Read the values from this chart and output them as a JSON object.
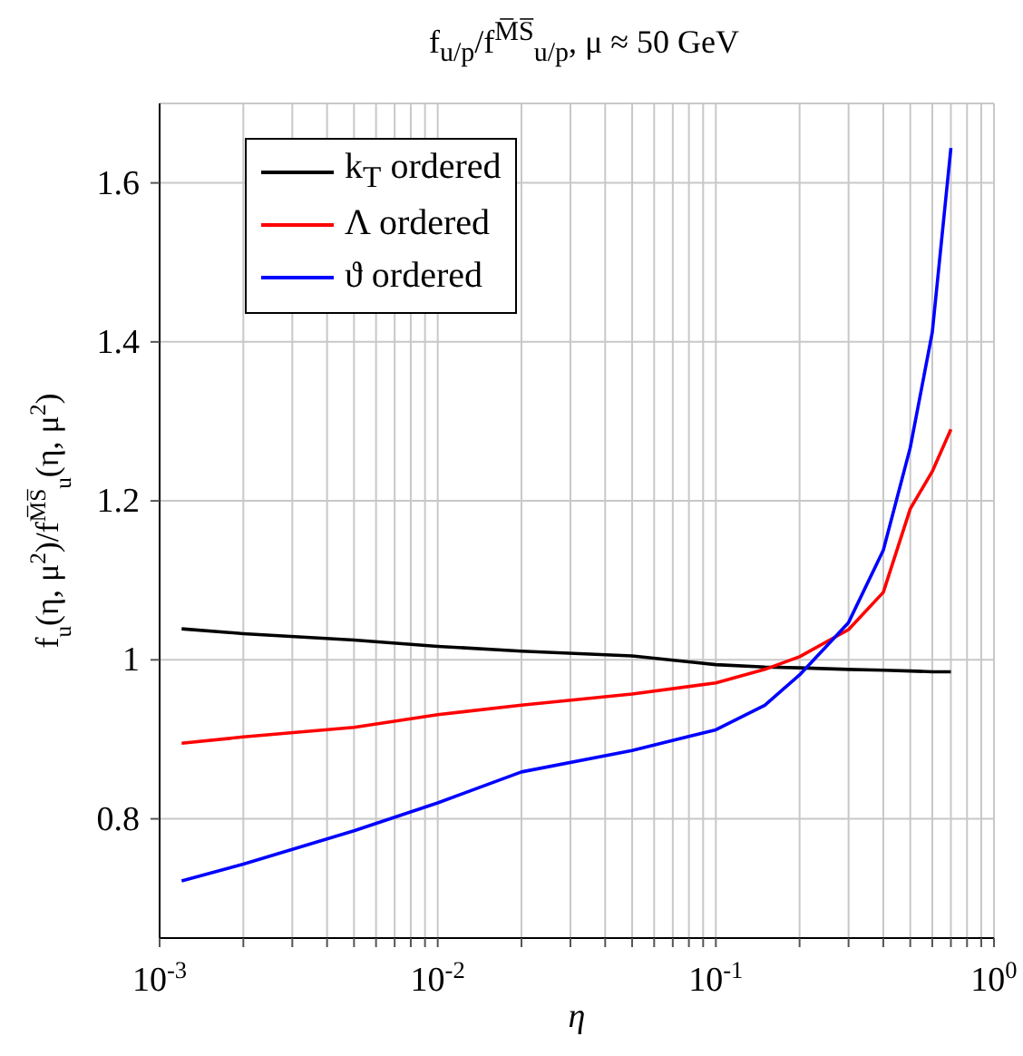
{
  "chart_data": {
    "type": "line",
    "title": "f$_{u/p}$/f$^{M̅S̅}$$_{u/p}$, μ ≈ 50 GeV",
    "xlabel": "η",
    "ylabel": "f$_{u}$(η, μ$^{2}$)/f$^{M̅S̅}$$_{u}$(η, μ$^{2}$)",
    "x": [
      0.0012,
      0.002,
      0.005,
      0.01,
      0.02,
      0.05,
      0.1,
      0.15,
      0.2,
      0.3,
      0.4,
      0.5,
      0.6,
      0.7
    ],
    "series": [
      {
        "name": "k$_{T}$ ordered",
        "color": "#000000",
        "values": [
          1.039,
          1.033,
          1.025,
          1.017,
          1.011,
          1.005,
          0.994,
          0.991,
          0.99,
          0.988,
          0.987,
          0.986,
          0.985,
          0.985
        ]
      },
      {
        "name": "Λ ordered",
        "color": "#ff0000",
        "values": [
          0.895,
          0.903,
          0.915,
          0.931,
          0.943,
          0.957,
          0.971,
          0.988,
          1.004,
          1.038,
          1.085,
          1.19,
          1.237,
          1.29
        ]
      },
      {
        "name": "ϑ ordered",
        "color": "#0000ff",
        "values": [
          0.722,
          0.743,
          0.785,
          0.82,
          0.859,
          0.886,
          0.912,
          0.943,
          0.981,
          1.047,
          1.138,
          1.267,
          1.412,
          1.644
        ]
      }
    ],
    "log": "x",
    "xlim": [
      0.001,
      1
    ],
    "xticks": [
      {
        "value": 0.001,
        "label": "10$^{-3}$"
      },
      {
        "value": 0.002,
        "label": null
      },
      {
        "value": 0.003,
        "label": null
      },
      {
        "value": 0.004,
        "label": null
      },
      {
        "value": 0.005,
        "label": null
      },
      {
        "value": 0.006,
        "label": null
      },
      {
        "value": 0.007,
        "label": null
      },
      {
        "value": 0.008,
        "label": null
      },
      {
        "value": 0.009,
        "label": null
      },
      {
        "value": 0.01,
        "label": "10$^{-2}$"
      },
      {
        "value": 0.02,
        "label": null
      },
      {
        "value": 0.03,
        "label": null
      },
      {
        "value": 0.04,
        "label": null
      },
      {
        "value": 0.05,
        "label": null
      },
      {
        "value": 0.06,
        "label": null
      },
      {
        "value": 0.07,
        "label": null
      },
      {
        "value": 0.08,
        "label": null
      },
      {
        "value": 0.09,
        "label": null
      },
      {
        "value": 0.1,
        "label": "10$^{-1}$"
      },
      {
        "value": 0.2,
        "label": null
      },
      {
        "value": 0.3,
        "label": null
      },
      {
        "value": 0.4,
        "label": null
      },
      {
        "value": 0.5,
        "label": null
      },
      {
        "value": 0.6,
        "label": null
      },
      {
        "value": 0.7,
        "label": null
      },
      {
        "value": 0.8,
        "label": null
      },
      {
        "value": 0.9,
        "label": null
      },
      {
        "value": 1,
        "label": "10$^{0}$"
      }
    ],
    "ylim": [
      0.65,
      1.7
    ],
    "yticks": [
      0.8,
      1,
      1.2,
      1.4,
      1.6
    ],
    "grid": true,
    "legend": "top left"
  }
}
